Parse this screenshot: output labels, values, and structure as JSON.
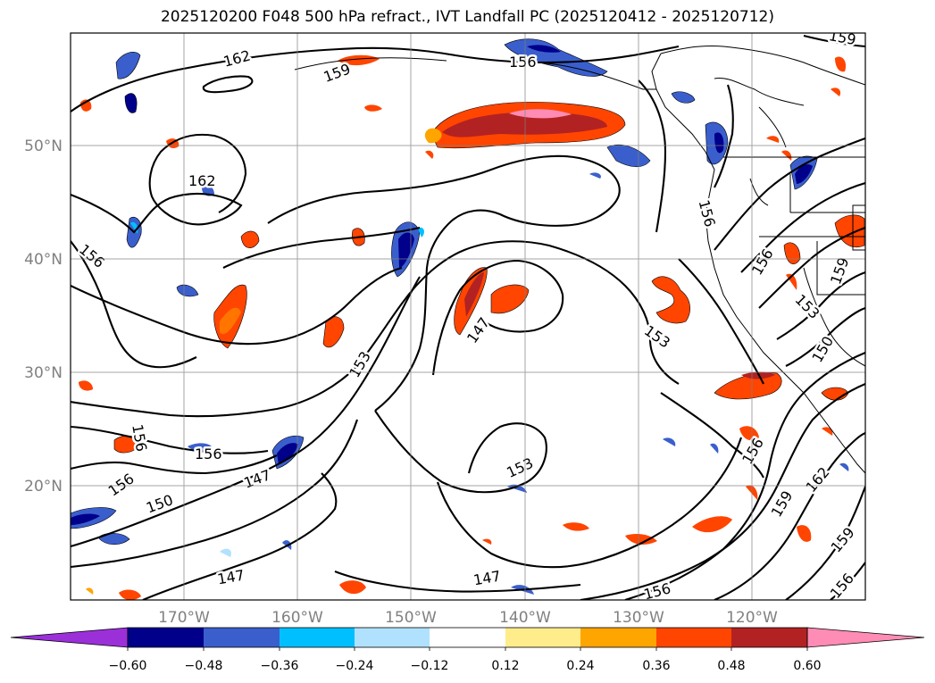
{
  "title": "2025120200 F048 500 hPa refract., IVT Landfall PC (2025120412 - 2025120712)",
  "lon_ticks": [
    "170°W",
    "160°W",
    "150°W",
    "140°W",
    "130°W",
    "120°W"
  ],
  "lat_ticks": [
    "50°N",
    "40°N",
    "30°N",
    "20°N"
  ],
  "colorbar": {
    "tick_labels": [
      "−0.60",
      "−0.48",
      "−0.36",
      "−0.24",
      "−0.12",
      "0.12",
      "0.24",
      "0.36",
      "0.48",
      "0.60"
    ],
    "colors": [
      "#9b30d9",
      "#00008b",
      "#3a5fcd",
      "#00bfff",
      "#b0e2ff",
      "#ffffff",
      "#ffec8b",
      "#ffa500",
      "#ff4500",
      "#b22222",
      "#ff8cb4"
    ]
  },
  "contour_labels": [
    "162",
    "159",
    "156",
    "159",
    "162",
    "156",
    "156",
    "156",
    "153",
    "147",
    "153",
    "156",
    "159",
    "153",
    "150",
    "156",
    "156",
    "147",
    "150",
    "153",
    "156",
    "159",
    "162",
    "159",
    "156",
    "147",
    "156",
    "147",
    "153",
    "159"
  ]
}
